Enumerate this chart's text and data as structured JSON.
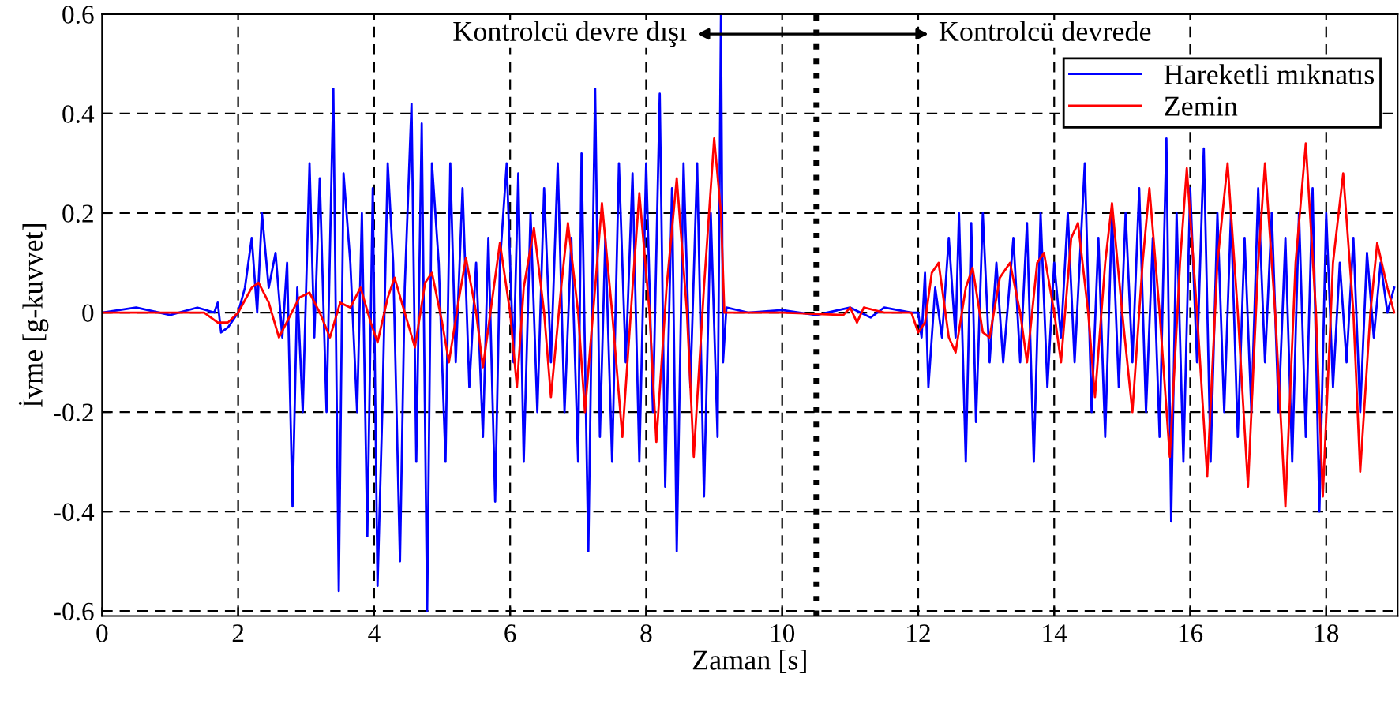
{
  "chart_data": {
    "type": "line",
    "xlabel": "Zaman [s]",
    "ylabel": "İvme [g-kuvvet]",
    "xlim": [
      0,
      19.05
    ],
    "ylim": [
      -0.61,
      0.6
    ],
    "xticks": [
      0,
      2,
      4,
      6,
      8,
      10,
      12,
      14,
      16,
      18
    ],
    "yticks": [
      -0.6,
      -0.4,
      -0.2,
      0,
      0.2,
      0.4,
      0.6
    ],
    "grid": true,
    "legend": "top right",
    "line_style": "solid",
    "marker": "none",
    "ref_lines": [
      {
        "axis": "x",
        "value": 10.5,
        "label": null,
        "color": "#000000",
        "line_style": "dotted"
      }
    ],
    "annotations": [
      "Kontrolcü devre dışı",
      "Kontrolcü devrede"
    ],
    "series": [
      {
        "name": "Hareketli mıknatıs",
        "color": "#0000ff",
        "x": [
          0,
          0.5,
          1.0,
          1.4,
          1.65,
          1.7,
          1.75,
          1.85,
          2.0,
          2.1,
          2.2,
          2.28,
          2.35,
          2.45,
          2.55,
          2.65,
          2.72,
          2.8,
          2.87,
          2.95,
          3.05,
          3.12,
          3.2,
          3.3,
          3.4,
          3.48,
          3.55,
          3.65,
          3.75,
          3.82,
          3.9,
          3.98,
          4.05,
          4.12,
          4.2,
          4.28,
          4.38,
          4.45,
          4.55,
          4.62,
          4.7,
          4.78,
          4.85,
          4.95,
          5.05,
          5.12,
          5.2,
          5.3,
          5.4,
          5.5,
          5.6,
          5.68,
          5.78,
          5.85,
          5.95,
          6.05,
          6.12,
          6.2,
          6.3,
          6.4,
          6.5,
          6.6,
          6.7,
          6.8,
          6.9,
          7.0,
          7.05,
          7.15,
          7.25,
          7.32,
          7.4,
          7.5,
          7.6,
          7.7,
          7.8,
          7.9,
          8.0,
          8.1,
          8.2,
          8.28,
          8.38,
          8.45,
          8.55,
          8.65,
          8.75,
          8.85,
          8.95,
          9.05,
          9.1,
          9.13,
          9.18,
          9.5,
          10.0,
          10.5,
          11.0,
          11.3,
          11.5,
          11.9,
          12.0,
          12.05,
          12.1,
          12.15,
          12.25,
          12.35,
          12.45,
          12.55,
          12.6,
          12.7,
          12.78,
          12.85,
          12.95,
          13.05,
          13.15,
          13.25,
          13.4,
          13.5,
          13.6,
          13.7,
          13.8,
          13.9,
          14.0,
          14.1,
          14.2,
          14.3,
          14.45,
          14.55,
          14.65,
          14.75,
          14.85,
          14.95,
          15.05,
          15.15,
          15.25,
          15.35,
          15.45,
          15.55,
          15.65,
          15.72,
          15.8,
          15.9,
          16.0,
          16.1,
          16.2,
          16.3,
          16.4,
          16.5,
          16.6,
          16.7,
          16.8,
          16.9,
          17.0,
          17.1,
          17.2,
          17.3,
          17.4,
          17.5,
          17.6,
          17.7,
          17.8,
          17.9,
          18.0,
          18.1,
          18.2,
          18.3,
          18.4,
          18.5,
          18.6,
          18.7,
          18.8,
          18.9,
          19.0
        ],
        "values": [
          0.0,
          0.01,
          -0.005,
          0.01,
          0.0,
          0.02,
          -0.04,
          -0.03,
          0.0,
          0.05,
          0.15,
          0.0,
          0.2,
          0.05,
          0.12,
          -0.05,
          0.1,
          -0.39,
          0.05,
          -0.2,
          0.3,
          -0.05,
          0.27,
          -0.2,
          0.45,
          -0.56,
          0.28,
          0.1,
          -0.2,
          0.2,
          -0.45,
          0.25,
          -0.55,
          -0.2,
          0.3,
          0.1,
          -0.5,
          0.05,
          0.42,
          -0.3,
          0.38,
          -0.6,
          0.3,
          0.1,
          -0.3,
          0.3,
          -0.1,
          0.25,
          -0.15,
          0.1,
          -0.25,
          0.15,
          -0.38,
          0.1,
          0.3,
          -0.1,
          0.28,
          -0.3,
          0.2,
          -0.2,
          0.25,
          -0.1,
          0.3,
          -0.2,
          0.15,
          -0.3,
          0.32,
          -0.48,
          0.45,
          -0.25,
          0.15,
          -0.3,
          0.3,
          -0.1,
          0.28,
          -0.3,
          0.3,
          -0.2,
          0.44,
          -0.35,
          0.25,
          -0.48,
          0.3,
          -0.15,
          0.3,
          -0.37,
          0.2,
          -0.25,
          0.6,
          -0.1,
          0.01,
          0.0,
          0.005,
          -0.005,
          0.01,
          -0.01,
          0.01,
          0.0,
          0.0,
          -0.05,
          0.08,
          -0.15,
          0.05,
          -0.05,
          0.15,
          -0.05,
          0.2,
          -0.3,
          0.18,
          -0.22,
          0.2,
          -0.1,
          0.1,
          -0.1,
          0.15,
          -0.1,
          0.18,
          -0.3,
          0.2,
          -0.15,
          0.1,
          -0.05,
          0.2,
          -0.1,
          0.3,
          -0.2,
          0.15,
          -0.25,
          0.2,
          -0.15,
          0.2,
          -0.1,
          0.25,
          -0.2,
          0.15,
          -0.25,
          0.35,
          -0.42,
          0.2,
          -0.3,
          0.25,
          -0.1,
          0.33,
          -0.3,
          0.2,
          -0.2,
          0.2,
          -0.25,
          0.15,
          -0.2,
          0.25,
          -0.1,
          0.2,
          -0.2,
          0.15,
          -0.3,
          0.2,
          -0.25,
          0.25,
          -0.4,
          0.2,
          -0.15,
          0.1,
          -0.1,
          0.15,
          -0.2,
          0.12,
          -0.05,
          0.1,
          0.0,
          0.05
        ]
      },
      {
        "name": "Zemin",
        "color": "#ff0000",
        "x": [
          0,
          1.5,
          1.7,
          1.85,
          2.0,
          2.2,
          2.3,
          2.45,
          2.6,
          2.75,
          2.9,
          3.05,
          3.2,
          3.35,
          3.5,
          3.65,
          3.8,
          3.95,
          4.05,
          4.2,
          4.3,
          4.45,
          4.6,
          4.75,
          4.85,
          5.0,
          5.1,
          5.25,
          5.35,
          5.5,
          5.6,
          5.75,
          5.85,
          6.0,
          6.1,
          6.2,
          6.35,
          6.5,
          6.6,
          6.75,
          6.85,
          7.0,
          7.1,
          7.25,
          7.35,
          7.5,
          7.65,
          7.8,
          7.9,
          8.05,
          8.15,
          8.3,
          8.45,
          8.6,
          8.7,
          8.85,
          9.0,
          9.1,
          9.15,
          10.0,
          10.9,
          11.0,
          11.1,
          11.2,
          11.5,
          11.9,
          12.0,
          12.1,
          12.2,
          12.3,
          12.45,
          12.55,
          12.7,
          12.8,
          12.95,
          13.05,
          13.2,
          13.35,
          13.5,
          13.6,
          13.75,
          13.85,
          14.0,
          14.1,
          14.25,
          14.35,
          14.5,
          14.6,
          14.75,
          14.85,
          15.0,
          15.15,
          15.3,
          15.4,
          15.55,
          15.7,
          15.85,
          15.95,
          16.1,
          16.25,
          16.4,
          16.55,
          16.7,
          16.85,
          17.0,
          17.1,
          17.25,
          17.4,
          17.55,
          17.7,
          17.85,
          17.95,
          18.1,
          18.25,
          18.4,
          18.5,
          18.65,
          18.75,
          18.9,
          19.0
        ],
        "values": [
          0.0,
          0.0,
          -0.02,
          -0.02,
          0.0,
          0.05,
          0.06,
          0.02,
          -0.05,
          -0.01,
          0.03,
          0.04,
          0.0,
          -0.05,
          0.02,
          0.01,
          0.05,
          -0.02,
          -0.06,
          0.03,
          0.07,
          0.0,
          -0.07,
          0.06,
          0.08,
          -0.02,
          -0.1,
          0.03,
          0.11,
          0.0,
          -0.11,
          0.04,
          0.14,
          0.0,
          -0.15,
          0.05,
          0.17,
          0.0,
          -0.17,
          0.05,
          0.18,
          0.0,
          -0.2,
          0.05,
          0.22,
          0.0,
          -0.25,
          0.05,
          0.24,
          0.0,
          -0.26,
          0.05,
          0.27,
          0.0,
          -0.29,
          0.05,
          0.35,
          0.2,
          0.0,
          0.0,
          -0.005,
          0.01,
          -0.02,
          0.01,
          0.0,
          0.0,
          -0.04,
          -0.02,
          0.08,
          0.1,
          -0.05,
          -0.08,
          0.05,
          0.09,
          -0.04,
          -0.05,
          0.07,
          0.1,
          0.0,
          -0.1,
          0.1,
          0.12,
          0.0,
          -0.1,
          0.15,
          0.18,
          0.0,
          -0.17,
          0.1,
          0.22,
          0.0,
          -0.2,
          0.1,
          0.25,
          0.0,
          -0.29,
          0.1,
          0.29,
          0.0,
          -0.33,
          0.1,
          0.3,
          0.0,
          -0.35,
          0.1,
          0.3,
          0.0,
          -0.39,
          0.1,
          0.34,
          0.0,
          -0.37,
          0.1,
          0.28,
          0.0,
          -0.32,
          0.0,
          0.14,
          0.05,
          0.0
        ]
      }
    ]
  }
}
